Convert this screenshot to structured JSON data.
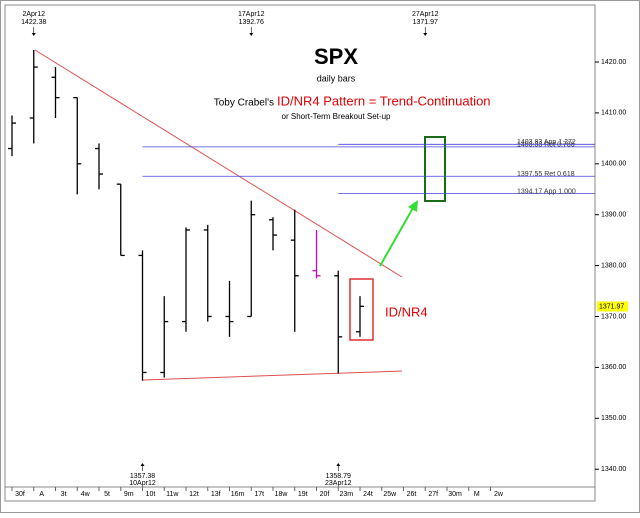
{
  "chart_data": {
    "type": "ohlc",
    "title": "SPX",
    "subtitle": "daily bars",
    "heading_prefix": "Toby Crabel's",
    "heading": "ID/NR4 Pattern = Trend-Continuation",
    "heading_note": "or Short-Term Breakout Set-up",
    "pattern_label": "ID/NR4",
    "categories": [
      "30f",
      "A",
      "3t",
      "4w",
      "5t",
      "9m",
      "10t",
      "11w",
      "12t",
      "13f",
      "16m",
      "17t",
      "18w",
      "19t",
      "20f",
      "23m",
      "24t",
      "25w",
      "26t",
      "27f",
      "30m",
      "M",
      "2w"
    ],
    "series": [
      {
        "name": "SPX",
        "color": "#000000",
        "highlight_color": "#cc00cc",
        "highlight": [
          14
        ],
        "open": [
          1403,
          1409,
          1417,
          1413,
          1403,
          1396,
          1382,
          1359,
          1369,
          1387,
          1370,
          1370,
          1389,
          1385,
          1379,
          1378,
          1367,
          null,
          null,
          null,
          null,
          null,
          null
        ],
        "high": [
          1409.5,
          1422.38,
          1419,
          1413,
          1404,
          1396,
          1383,
          1374,
          1387.5,
          1388,
          1377,
          1392.76,
          1389.5,
          1391,
          1387,
          1379,
          1374,
          null,
          null,
          null,
          null,
          null,
          null
        ],
        "low": [
          1401.5,
          1404,
          1409,
          1394,
          1395,
          1382,
          1357.38,
          1358,
          1367,
          1369,
          1366,
          1370,
          1383,
          1367,
          1377.5,
          1358.79,
          1366,
          null,
          null,
          null,
          null,
          null,
          null
        ],
        "close": [
          1408,
          1419,
          1413,
          1400,
          1398,
          1382,
          1359,
          1369,
          1387,
          1370,
          1369,
          1390,
          1386,
          1378,
          1378,
          1366,
          1372,
          null,
          null,
          null,
          null,
          null,
          null
        ]
      }
    ],
    "levels": [
      {
        "value": 1403.33,
        "label": "1403.33 Ret 0.786",
        "from": "10t"
      },
      {
        "value": 1403.83,
        "label": "1403.83 App 1.272",
        "from": "23m"
      },
      {
        "value": 1397.55,
        "label": "1397.55 Ret 0.618",
        "from": "10t"
      },
      {
        "value": 1394.17,
        "label": "1394.17 App 1.000",
        "from": "23m"
      }
    ],
    "annotations_top": [
      {
        "date": "2Apr12",
        "value": 1422.38,
        "at": "A"
      },
      {
        "date": "17Apr12",
        "value": 1392.76,
        "at": "17t"
      },
      {
        "date": "27Apr12",
        "value": 1371.97,
        "at": "27f"
      }
    ],
    "annotations_bottom": [
      {
        "date": "10Apr12",
        "value": 1357.38,
        "at": "10t"
      },
      {
        "date": "23Apr12",
        "value": 1358.79,
        "at": "23m"
      }
    ],
    "last_price": 1371.97,
    "ylim": [
      1336.5,
      1431.2
    ],
    "yticks": [
      {
        "value": 1340,
        "label": "1340.00"
      },
      {
        "value": 1350,
        "label": "1350.00"
      },
      {
        "value": 1360,
        "label": "1360.00"
      },
      {
        "value": 1370,
        "label": "1370.00"
      },
      {
        "value": 1380,
        "label": "1380.00"
      },
      {
        "value": 1390,
        "label": "1390.00"
      },
      {
        "value": 1400,
        "label": "1400.00"
      },
      {
        "value": 1410,
        "label": "1410.00"
      },
      {
        "value": 1420,
        "label": "1420.00"
      }
    ]
  }
}
